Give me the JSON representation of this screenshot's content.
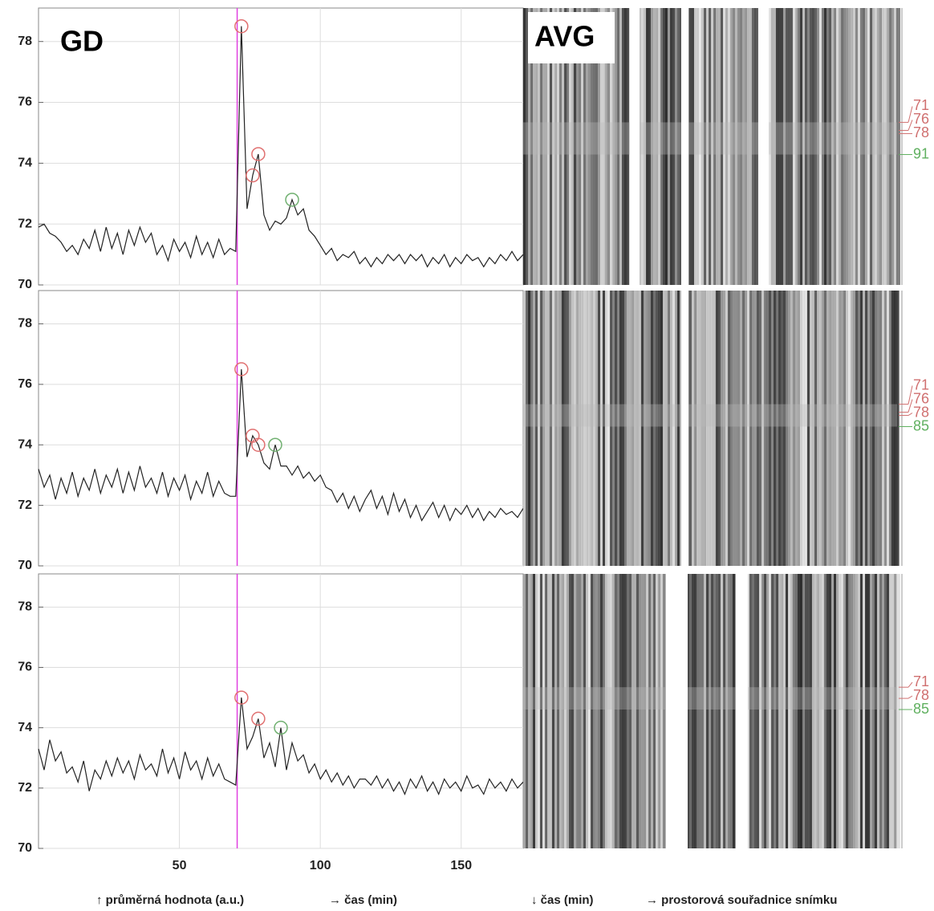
{
  "chart_data": [
    {
      "type": "line",
      "title": "GD",
      "image_label": "AVG",
      "x": [
        0,
        2,
        4,
        6,
        8,
        10,
        12,
        14,
        16,
        18,
        20,
        22,
        24,
        26,
        28,
        30,
        32,
        34,
        36,
        38,
        40,
        42,
        44,
        46,
        48,
        50,
        52,
        54,
        56,
        58,
        60,
        62,
        64,
        66,
        68,
        70,
        72,
        74,
        76,
        78,
        80,
        82,
        84,
        86,
        88,
        90,
        92,
        94,
        96,
        98,
        100,
        102,
        104,
        106,
        108,
        110,
        112,
        114,
        116,
        118,
        120,
        122,
        124,
        126,
        128,
        130,
        132,
        134,
        136,
        138,
        140,
        142,
        144,
        146,
        148,
        150,
        152,
        154,
        156,
        158,
        160,
        162,
        164,
        166,
        168,
        170,
        172
      ],
      "series": [
        {
          "color": "#222222",
          "values": [
            71.9,
            72.0,
            71.7,
            71.6,
            71.4,
            71.1,
            71.3,
            71.0,
            71.5,
            71.2,
            71.8,
            71.1,
            71.9,
            71.2,
            71.7,
            71.0,
            71.8,
            71.3,
            71.9,
            71.4,
            71.7,
            71.0,
            71.3,
            70.8,
            71.5,
            71.1,
            71.4,
            70.9,
            71.6,
            71.0,
            71.4,
            70.9,
            71.5,
            71.0,
            71.2,
            71.1,
            78.5,
            72.5,
            73.6,
            74.3,
            72.3,
            71.8,
            72.1,
            72.0,
            72.2,
            72.8,
            72.3,
            72.5,
            71.8,
            71.6,
            71.3,
            71.0,
            71.2,
            70.8,
            71.0,
            70.9,
            71.1,
            70.7,
            70.9,
            70.6,
            70.9,
            70.7,
            71.0,
            70.8,
            71.0,
            70.7,
            71.0,
            70.8,
            71.0,
            70.6,
            70.9,
            70.7,
            71.0,
            70.6,
            70.9,
            70.7,
            71.0,
            70.8,
            70.9,
            70.6,
            70.9,
            70.7,
            71.0,
            70.8,
            71.1,
            70.8,
            71.0
          ]
        }
      ],
      "peaks": {
        "x": [
          72,
          76,
          78,
          90
        ],
        "y": [
          78.5,
          73.6,
          74.3,
          72.8
        ],
        "colors": [
          "#e07070",
          "#e07070",
          "#e07070",
          "#70b070"
        ]
      },
      "vline": 70.5,
      "vline_color": "#e040e0",
      "xlim": [
        0,
        172
      ],
      "xticks": [
        50,
        100,
        150
      ],
      "ylim": [
        70,
        79.1
      ],
      "yticks": [
        70,
        72,
        74,
        76,
        78
      ],
      "grid": true,
      "kymo_ylim": [
        0,
        172
      ],
      "kymo_ticks": [
        71,
        76,
        78,
        91
      ],
      "kymo_tick_colors": [
        "#d07070",
        "#d07070",
        "#d07070",
        "#60b060"
      ]
    },
    {
      "type": "line",
      "x": [
        0,
        2,
        4,
        6,
        8,
        10,
        12,
        14,
        16,
        18,
        20,
        22,
        24,
        26,
        28,
        30,
        32,
        34,
        36,
        38,
        40,
        42,
        44,
        46,
        48,
        50,
        52,
        54,
        56,
        58,
        60,
        62,
        64,
        66,
        68,
        70,
        72,
        74,
        76,
        78,
        80,
        82,
        84,
        86,
        88,
        90,
        92,
        94,
        96,
        98,
        100,
        102,
        104,
        106,
        108,
        110,
        112,
        114,
        116,
        118,
        120,
        122,
        124,
        126,
        128,
        130,
        132,
        134,
        136,
        138,
        140,
        142,
        144,
        146,
        148,
        150,
        152,
        154,
        156,
        158,
        160,
        162,
        164,
        166,
        168,
        170,
        172
      ],
      "series": [
        {
          "color": "#222222",
          "values": [
            73.2,
            72.6,
            73.0,
            72.2,
            72.9,
            72.4,
            73.1,
            72.3,
            72.9,
            72.5,
            73.2,
            72.4,
            73.0,
            72.6,
            73.2,
            72.4,
            73.1,
            72.5,
            73.3,
            72.6,
            72.9,
            72.4,
            73.1,
            72.3,
            72.9,
            72.5,
            73.0,
            72.2,
            72.8,
            72.4,
            73.1,
            72.3,
            72.8,
            72.4,
            72.3,
            72.3,
            76.5,
            73.6,
            74.3,
            74.0,
            73.4,
            73.2,
            74.0,
            73.3,
            73.3,
            73.0,
            73.3,
            72.9,
            73.1,
            72.8,
            73.0,
            72.6,
            72.5,
            72.1,
            72.4,
            71.9,
            72.3,
            71.8,
            72.2,
            72.5,
            71.9,
            72.3,
            71.7,
            72.4,
            71.8,
            72.2,
            71.6,
            72.0,
            71.5,
            71.8,
            72.1,
            71.6,
            72.0,
            71.5,
            71.9,
            71.7,
            72.0,
            71.6,
            71.9,
            71.5,
            71.8,
            71.6,
            71.9,
            71.7,
            71.8,
            71.6,
            71.9
          ]
        }
      ],
      "peaks": {
        "x": [
          72,
          76,
          78,
          84
        ],
        "y": [
          76.5,
          74.3,
          74.0,
          74.0
        ],
        "colors": [
          "#e07070",
          "#e07070",
          "#e07070",
          "#70b070"
        ]
      },
      "vline": 70.5,
      "vline_color": "#e040e0",
      "xlim": [
        0,
        172
      ],
      "xticks": [
        50,
        100,
        150
      ],
      "ylim": [
        70,
        79.1
      ],
      "yticks": [
        70,
        72,
        74,
        76,
        78
      ],
      "grid": true,
      "kymo_ylim": [
        0,
        172
      ],
      "kymo_ticks": [
        71,
        76,
        78,
        85
      ],
      "kymo_tick_colors": [
        "#d07070",
        "#d07070",
        "#d07070",
        "#60b060"
      ]
    },
    {
      "type": "line",
      "x": [
        0,
        2,
        4,
        6,
        8,
        10,
        12,
        14,
        16,
        18,
        20,
        22,
        24,
        26,
        28,
        30,
        32,
        34,
        36,
        38,
        40,
        42,
        44,
        46,
        48,
        50,
        52,
        54,
        56,
        58,
        60,
        62,
        64,
        66,
        68,
        70,
        72,
        74,
        76,
        78,
        80,
        82,
        84,
        86,
        88,
        90,
        92,
        94,
        96,
        98,
        100,
        102,
        104,
        106,
        108,
        110,
        112,
        114,
        116,
        118,
        120,
        122,
        124,
        126,
        128,
        130,
        132,
        134,
        136,
        138,
        140,
        142,
        144,
        146,
        148,
        150,
        152,
        154,
        156,
        158,
        160,
        162,
        164,
        166,
        168,
        170,
        172
      ],
      "series": [
        {
          "color": "#222222",
          "values": [
            73.3,
            72.6,
            73.6,
            72.9,
            73.2,
            72.5,
            72.7,
            72.2,
            72.9,
            71.9,
            72.6,
            72.3,
            72.9,
            72.4,
            73.0,
            72.5,
            72.9,
            72.3,
            73.1,
            72.6,
            72.8,
            72.4,
            73.3,
            72.5,
            73.0,
            72.3,
            73.2,
            72.6,
            72.9,
            72.3,
            73.0,
            72.4,
            72.8,
            72.3,
            72.2,
            72.1,
            75.0,
            73.3,
            73.7,
            74.3,
            73.0,
            73.5,
            72.7,
            74.0,
            72.6,
            73.5,
            72.9,
            73.1,
            72.5,
            72.8,
            72.3,
            72.6,
            72.2,
            72.5,
            72.1,
            72.4,
            72.0,
            72.3,
            72.3,
            72.1,
            72.4,
            72.0,
            72.3,
            71.9,
            72.2,
            71.8,
            72.3,
            72.0,
            72.4,
            71.9,
            72.2,
            71.8,
            72.3,
            72.0,
            72.2,
            71.9,
            72.4,
            72.0,
            72.1,
            71.8,
            72.3,
            72.0,
            72.2,
            71.9,
            72.3,
            72.0,
            72.2
          ]
        }
      ],
      "peaks": {
        "x": [
          72,
          78,
          86
        ],
        "y": [
          75.0,
          74.3,
          74.0
        ],
        "colors": [
          "#e07070",
          "#e07070",
          "#70b070"
        ]
      },
      "vline": 70.5,
      "vline_color": "#e040e0",
      "xlim": [
        0,
        172
      ],
      "xticks": [
        50,
        100,
        150
      ],
      "ylim": [
        70,
        79.1
      ],
      "yticks": [
        70,
        72,
        74,
        76,
        78
      ],
      "grid": true,
      "kymo_ylim": [
        0,
        172
      ],
      "kymo_ticks": [
        71,
        78,
        85
      ],
      "kymo_tick_colors": [
        "#d07070",
        "#d07070",
        "#60b060"
      ]
    }
  ],
  "captions": [
    "↑  průměrná hodnota (a.u.)",
    "→  čas (min)",
    "↓  čas (min)",
    "→  prostorová souřadnice snímku"
  ]
}
